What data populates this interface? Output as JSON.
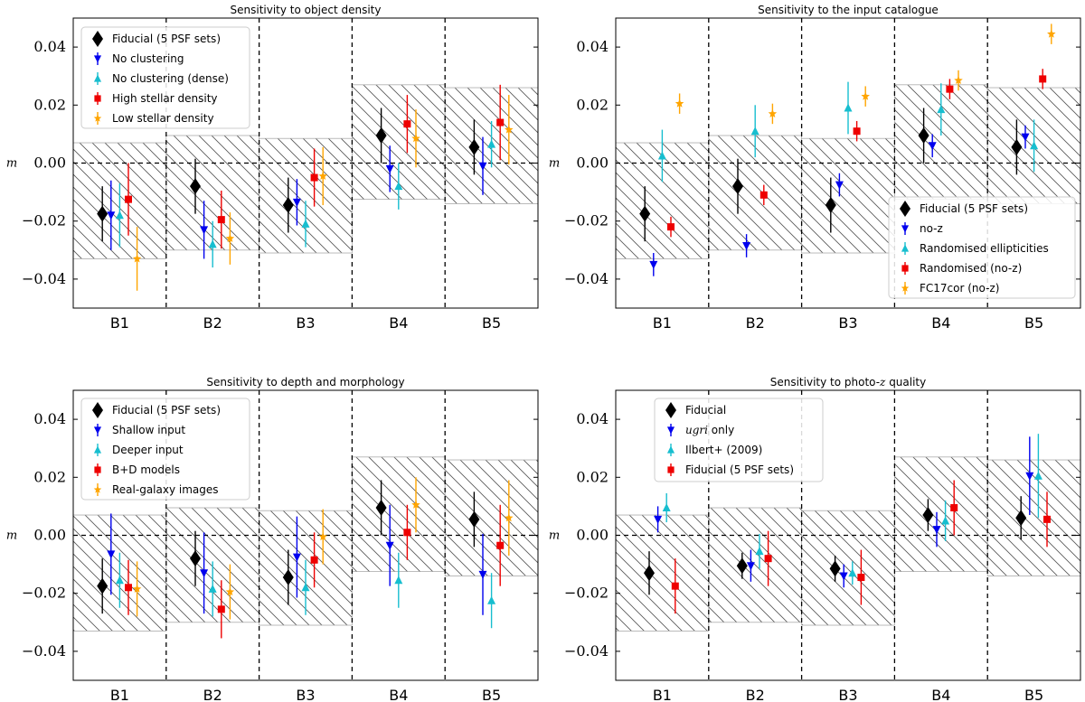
{
  "figure": {
    "colors": {
      "Fiducial": "#000000",
      "blue": "#0000ee",
      "cyan": "#17becf",
      "red": "#ee0000",
      "orange": "#ffa500",
      "hatch": "#555555",
      "bandEdge": "#aaaaaa"
    }
  },
  "chart_data": [
    {
      "type": "scatter",
      "title": "Sensitivity to object density",
      "ylabel": "m",
      "ylim": [
        -0.05,
        0.05
      ],
      "yticks": [
        -0.04,
        -0.02,
        0.0,
        0.02,
        0.04
      ],
      "ytick_labels": [
        "−0.04",
        "−0.02",
        "0.00",
        "0.02",
        "0.04"
      ],
      "categories": [
        "B1",
        "B2",
        "B3",
        "B4",
        "B5"
      ],
      "legend_position": "top-left",
      "bands": [
        {
          "bin": "B1",
          "low": -0.033,
          "high": 0.007
        },
        {
          "bin": "B2",
          "low": -0.03,
          "high": 0.0095
        },
        {
          "bin": "B3",
          "low": -0.031,
          "high": 0.0085
        },
        {
          "bin": "B4",
          "low": -0.0125,
          "high": 0.027
        },
        {
          "bin": "B5",
          "low": -0.014,
          "high": 0.026
        }
      ],
      "series": [
        {
          "name": "Fiducial (5 PSF sets)",
          "marker": "diamond",
          "color": "Fiducial",
          "values": [
            -0.0175,
            -0.008,
            -0.0145,
            0.0095,
            0.0055
          ],
          "errors": [
            0.0095,
            0.0095,
            0.0095,
            0.0095,
            0.0095
          ]
        },
        {
          "name": "No clustering",
          "marker": "tri-down",
          "color": "blue",
          "values": [
            -0.018,
            -0.023,
            -0.0135,
            -0.002,
            -0.001
          ],
          "errors": [
            0.012,
            0.01,
            0.008,
            0.008,
            0.01
          ]
        },
        {
          "name": "No clustering (dense)",
          "marker": "tri-up",
          "color": "cyan",
          "values": [
            -0.018,
            -0.028,
            -0.021,
            -0.008,
            0.0065
          ],
          "errors": [
            0.011,
            0.008,
            0.008,
            0.008,
            0.008
          ]
        },
        {
          "name": "High stellar density",
          "marker": "square",
          "color": "red",
          "values": [
            -0.0125,
            -0.0195,
            -0.005,
            0.0135,
            0.014
          ],
          "errors": [
            0.0125,
            0.01,
            0.01,
            0.01,
            0.013
          ]
        },
        {
          "name": "Low stellar density",
          "marker": "star",
          "color": "orange",
          "values": [
            -0.033,
            -0.026,
            -0.0045,
            0.0085,
            0.0115
          ],
          "errors": [
            0.011,
            0.009,
            0.01,
            0.01,
            0.012
          ]
        }
      ]
    },
    {
      "type": "scatter",
      "title": "Sensitivity to the input catalogue",
      "ylabel": "m",
      "ylim": [
        -0.05,
        0.05
      ],
      "yticks": [
        -0.04,
        -0.02,
        0.0,
        0.02,
        0.04
      ],
      "ytick_labels": [
        "−0.04",
        "−0.02",
        "0.00",
        "0.02",
        "0.04"
      ],
      "categories": [
        "B1",
        "B2",
        "B3",
        "B4",
        "B5"
      ],
      "legend_position": "bottom-right",
      "bands": [
        {
          "bin": "B1",
          "low": -0.033,
          "high": 0.007
        },
        {
          "bin": "B2",
          "low": -0.03,
          "high": 0.0095
        },
        {
          "bin": "B3",
          "low": -0.031,
          "high": 0.0085
        },
        {
          "bin": "B4",
          "low": -0.0125,
          "high": 0.027
        },
        {
          "bin": "B5",
          "low": -0.014,
          "high": 0.026
        }
      ],
      "series": [
        {
          "name": "Fiducial (5 PSF sets)",
          "marker": "diamond",
          "color": "Fiducial",
          "values": [
            -0.0175,
            -0.008,
            -0.0145,
            0.0095,
            0.0055
          ],
          "errors": [
            0.0095,
            0.0095,
            0.0095,
            0.0095,
            0.0095
          ]
        },
        {
          "name": "no-z",
          "marker": "tri-down",
          "color": "blue",
          "values": [
            -0.035,
            -0.0285,
            -0.0075,
            0.006,
            0.009
          ],
          "errors": [
            0.004,
            0.004,
            0.004,
            0.004,
            0.004
          ]
        },
        {
          "name": "Randomised ellipticities",
          "marker": "tri-up",
          "color": "cyan",
          "values": [
            0.0025,
            0.011,
            0.019,
            0.0185,
            0.006
          ],
          "errors": [
            0.009,
            0.009,
            0.009,
            0.009,
            0.009
          ]
        },
        {
          "name": "Randomised (no-z)",
          "marker": "square",
          "color": "red",
          "values": [
            -0.022,
            -0.011,
            0.011,
            0.0255,
            0.029
          ],
          "errors": [
            0.0035,
            0.0035,
            0.0035,
            0.0035,
            0.0035
          ]
        },
        {
          "name": "FC17cor (no-z)",
          "marker": "star",
          "color": "orange",
          "values": [
            0.0205,
            0.017,
            0.023,
            0.0285,
            0.0445
          ],
          "errors": [
            0.0035,
            0.0035,
            0.0035,
            0.0035,
            0.0035
          ]
        }
      ]
    },
    {
      "type": "scatter",
      "title": "Sensitivity to depth and morphology",
      "ylabel": "m",
      "ylim": [
        -0.05,
        0.05
      ],
      "yticks": [
        -0.04,
        -0.02,
        0.0,
        0.02,
        0.04
      ],
      "ytick_labels": [
        "−0.04",
        "−0.02",
        "0.00",
        "0.02",
        "0.04"
      ],
      "categories": [
        "B1",
        "B2",
        "B3",
        "B4",
        "B5"
      ],
      "legend_position": "top-left",
      "bands": [
        {
          "bin": "B1",
          "low": -0.033,
          "high": 0.007
        },
        {
          "bin": "B2",
          "low": -0.03,
          "high": 0.0095
        },
        {
          "bin": "B3",
          "low": -0.031,
          "high": 0.0085
        },
        {
          "bin": "B4",
          "low": -0.0125,
          "high": 0.027
        },
        {
          "bin": "B5",
          "low": -0.014,
          "high": 0.026
        }
      ],
      "series": [
        {
          "name": "Fiducial (5 PSF sets)",
          "marker": "diamond",
          "color": "Fiducial",
          "values": [
            -0.0175,
            -0.008,
            -0.0145,
            0.0095,
            0.0055
          ],
          "errors": [
            0.0095,
            0.0095,
            0.0095,
            0.0095,
            0.0095
          ]
        },
        {
          "name": "Shallow input",
          "marker": "tri-down",
          "color": "blue",
          "values": [
            -0.0065,
            -0.013,
            -0.0075,
            -0.0035,
            -0.0135
          ],
          "errors": [
            0.014,
            0.014,
            0.014,
            0.014,
            0.014
          ]
        },
        {
          "name": "Deeper input",
          "marker": "tri-up",
          "color": "cyan",
          "values": [
            -0.0155,
            -0.0185,
            -0.018,
            -0.0155,
            -0.0225
          ],
          "errors": [
            0.0095,
            0.0095,
            0.0095,
            0.0095,
            0.0095
          ]
        },
        {
          "name": "B+D models",
          "marker": "square",
          "color": "red",
          "values": [
            -0.018,
            -0.0255,
            -0.0085,
            0.001,
            -0.0035
          ],
          "errors": [
            0.0095,
            0.01,
            0.0095,
            0.0095,
            0.014
          ]
        },
        {
          "name": "Real-galaxy images",
          "marker": "star",
          "color": "orange",
          "values": [
            -0.0185,
            -0.0195,
            -0.0005,
            0.0105,
            0.006
          ],
          "errors": [
            0.0095,
            0.0095,
            0.0095,
            0.0095,
            0.013
          ]
        }
      ]
    },
    {
      "type": "scatter",
      "title": "Sensitivity to photo-",
      "title_italic": "z",
      "title_tail": " quality",
      "ylabel": "m",
      "ylim": [
        -0.05,
        0.05
      ],
      "yticks": [
        -0.04,
        -0.02,
        0.0,
        0.02,
        0.04
      ],
      "ytick_labels": [
        "−0.04",
        "−0.02",
        "0.00",
        "0.02",
        "0.04"
      ],
      "categories": [
        "B1",
        "B2",
        "B3",
        "B4",
        "B5"
      ],
      "legend_position": "top-left",
      "bands": [
        {
          "bin": "B1",
          "low": -0.033,
          "high": 0.007
        },
        {
          "bin": "B2",
          "low": -0.03,
          "high": 0.0095
        },
        {
          "bin": "B3",
          "low": -0.031,
          "high": 0.0085
        },
        {
          "bin": "B4",
          "low": -0.0125,
          "high": 0.027
        },
        {
          "bin": "B5",
          "low": -0.014,
          "high": 0.026
        }
      ],
      "series": [
        {
          "name": "Fiducial",
          "marker": "diamond",
          "color": "Fiducial",
          "values": [
            -0.013,
            -0.0105,
            -0.0115,
            0.007,
            0.006
          ],
          "errors": [
            0.0075,
            0.0045,
            0.0045,
            0.0055,
            0.0075
          ]
        },
        {
          "name": "ugri only",
          "marker": "tri-down",
          "color": "blue",
          "values": [
            0.0055,
            -0.0105,
            -0.014,
            0.002,
            0.0205
          ],
          "errors": [
            0.0045,
            0.0055,
            0.004,
            0.006,
            0.0135
          ]
        },
        {
          "name": "Ilbert+ (2009)",
          "marker": "tri-up",
          "color": "cyan",
          "values": [
            0.0095,
            -0.0055,
            -0.013,
            0.005,
            0.0205
          ],
          "errors": [
            0.005,
            0.006,
            0.004,
            0.007,
            0.0145
          ]
        },
        {
          "name": "Fiducial (5 PSF sets)",
          "marker": "square",
          "color": "red",
          "values": [
            -0.0175,
            -0.008,
            -0.0145,
            0.0095,
            0.0055
          ],
          "errors": [
            0.0095,
            0.0095,
            0.0095,
            0.0095,
            0.0095
          ]
        }
      ]
    }
  ]
}
